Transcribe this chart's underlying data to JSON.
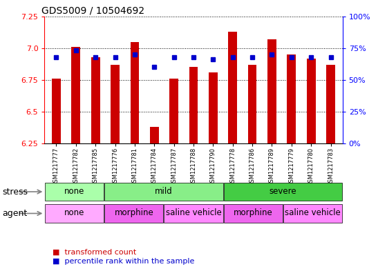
{
  "title": "GDS5009 / 10504692",
  "samples": [
    "GSM1217777",
    "GSM1217782",
    "GSM1217785",
    "GSM1217776",
    "GSM1217781",
    "GSM1217784",
    "GSM1217787",
    "GSM1217788",
    "GSM1217790",
    "GSM1217778",
    "GSM1217786",
    "GSM1217789",
    "GSM1217779",
    "GSM1217780",
    "GSM1217783"
  ],
  "bar_values": [
    6.76,
    7.01,
    6.93,
    6.87,
    7.05,
    6.38,
    6.76,
    6.85,
    6.81,
    7.13,
    6.87,
    7.07,
    6.95,
    6.92,
    6.87
  ],
  "dot_percentiles": [
    68,
    73,
    68,
    68,
    70,
    60,
    68,
    68,
    66,
    68,
    68,
    70,
    68,
    68,
    68
  ],
  "ymin": 6.25,
  "ymax": 7.25,
  "yticks": [
    6.25,
    6.5,
    6.75,
    7.0,
    7.25
  ],
  "right_yticks": [
    0,
    25,
    50,
    75,
    100
  ],
  "bar_color": "#cc0000",
  "dot_color": "#0000cc",
  "bar_bottom": 6.25,
  "stress_groups": [
    {
      "label": "none",
      "start": 0,
      "end": 3,
      "color": "#aaffaa"
    },
    {
      "label": "mild",
      "start": 3,
      "end": 9,
      "color": "#88ee88"
    },
    {
      "label": "severe",
      "start": 9,
      "end": 15,
      "color": "#44cc44"
    }
  ],
  "agent_groups": [
    {
      "label": "none",
      "start": 0,
      "end": 3,
      "color": "#ffaaff"
    },
    {
      "label": "morphine",
      "start": 3,
      "end": 6,
      "color": "#ee66ee"
    },
    {
      "label": "saline vehicle",
      "start": 6,
      "end": 9,
      "color": "#ff88ff"
    },
    {
      "label": "morphine",
      "start": 9,
      "end": 12,
      "color": "#ee66ee"
    },
    {
      "label": "saline vehicle",
      "start": 12,
      "end": 15,
      "color": "#ff88ff"
    }
  ],
  "legend_bar_label": "transformed count",
  "legend_dot_label": "percentile rank within the sample",
  "stress_label": "stress",
  "agent_label": "agent",
  "background_color": "#ffffff"
}
